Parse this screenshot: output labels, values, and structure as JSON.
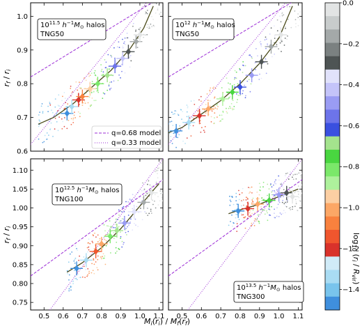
{
  "chart_data": {
    "type": "scatter",
    "xlabel": "M_i(r_i) / M_f(r_f)",
    "ylabel": "r_f / r_i",
    "xticks": [
      "0.5",
      "0.6",
      "0.7",
      "0.8",
      "0.9",
      "1.0",
      "1.1"
    ],
    "xlim": [
      0.43,
      1.12
    ],
    "colorbar": {
      "label": "log10 (r_i / R_vir)",
      "range": [
        -1.5,
        0.0
      ],
      "ticks": [
        "0.0",
        "−0.2",
        "−0.4",
        "−0.6",
        "−0.8",
        "−1.0",
        "−1.2",
        "−1.4"
      ],
      "colors": [
        "#3f8fdd",
        "#79c4ec",
        "#a9dcf3",
        "#d0ebf8",
        "#d9322b",
        "#f0562e",
        "#f9813e",
        "#fca766",
        "#fccfa3",
        "#aef19c",
        "#7be86a",
        "#49d640",
        "#a4e38d",
        "#3a50e0",
        "#6d74ea",
        "#9a9cf3",
        "#c4c4f9",
        "#e1e2fb",
        "#4e5454",
        "#7b8181",
        "#a4a9a9",
        "#c8cccc",
        "#e2e4e4"
      ]
    },
    "legend": [
      {
        "label": "q=0.68 model",
        "style": "dashed",
        "color": "#9b2bd6"
      },
      {
        "label": "q=0.33 model",
        "style": "dotted",
        "color": "#9b2bd6"
      }
    ],
    "panels": [
      {
        "label_mass": "10^{11.5} h^{-1}M_⊙ halos",
        "label_sim": "TNG50",
        "ylim": [
          0.6,
          1.04
        ],
        "yticks": [
          "0.6",
          "0.7",
          "0.8",
          "0.9",
          "1.0"
        ],
        "ytick_values": [
          0.6,
          0.7,
          0.8,
          0.9,
          1.0
        ],
        "binned_points": [
          {
            "x": 0.62,
            "y": 0.712
          },
          {
            "x": 0.645,
            "y": 0.732
          },
          {
            "x": 0.68,
            "y": 0.752
          },
          {
            "x": 0.7,
            "y": 0.762
          },
          {
            "x": 0.74,
            "y": 0.785
          },
          {
            "x": 0.78,
            "y": 0.8
          },
          {
            "x": 0.83,
            "y": 0.825
          },
          {
            "x": 0.87,
            "y": 0.852
          },
          {
            "x": 0.91,
            "y": 0.875
          },
          {
            "x": 0.94,
            "y": 0.895
          },
          {
            "x": 0.98,
            "y": 0.925
          },
          {
            "x": 1.0,
            "y": 0.945
          }
        ],
        "curve": [
          [
            0.47,
            0.68
          ],
          [
            0.55,
            0.7
          ],
          [
            0.65,
            0.74
          ],
          [
            0.75,
            0.79
          ],
          [
            0.85,
            0.84
          ],
          [
            0.95,
            0.905
          ],
          [
            1.02,
            0.965
          ],
          [
            1.07,
            1.03
          ]
        ],
        "model_q068": [
          [
            0.43,
            0.82
          ],
          [
            1.12,
            1.06
          ]
        ],
        "model_q033": [
          [
            0.43,
            0.62
          ],
          [
            1.12,
            1.1
          ]
        ]
      },
      {
        "label_mass": "10^{12} h^{-1}M_⊙ halos",
        "label_sim": "TNG50",
        "ylim": [
          0.6,
          1.04
        ],
        "binned_points": [
          {
            "x": 0.47,
            "y": 0.66
          },
          {
            "x": 0.535,
            "y": 0.685
          },
          {
            "x": 0.59,
            "y": 0.705
          },
          {
            "x": 0.635,
            "y": 0.725
          },
          {
            "x": 0.71,
            "y": 0.755
          },
          {
            "x": 0.76,
            "y": 0.775
          },
          {
            "x": 0.8,
            "y": 0.79
          },
          {
            "x": 0.86,
            "y": 0.825
          },
          {
            "x": 0.91,
            "y": 0.865
          },
          {
            "x": 0.96,
            "y": 0.91
          },
          {
            "x": 1.01,
            "y": 0.945
          }
        ],
        "curve": [
          [
            0.43,
            0.655
          ],
          [
            0.5,
            0.67
          ],
          [
            0.6,
            0.71
          ],
          [
            0.7,
            0.75
          ],
          [
            0.8,
            0.8
          ],
          [
            0.9,
            0.86
          ],
          [
            1.0,
            0.935
          ],
          [
            1.07,
            1.03
          ]
        ],
        "model_q068": [
          [
            0.43,
            0.82
          ],
          [
            1.12,
            1.06
          ]
        ],
        "model_q033": [
          [
            0.43,
            0.62
          ],
          [
            1.12,
            1.1
          ]
        ]
      },
      {
        "label_mass": "10^{12.5} h^{-1}M_⊙ halos",
        "label_sim": "TNG100",
        "ylim": [
          0.73,
          1.13
        ],
        "yticks": [
          "0.75",
          "0.80",
          "0.85",
          "0.90",
          "0.95",
          "1.00",
          "1.05",
          "1.10"
        ],
        "ytick_values": [
          0.75,
          0.8,
          0.85,
          0.9,
          0.95,
          1.0,
          1.05,
          1.1
        ],
        "binned_points": [
          {
            "x": 0.67,
            "y": 0.84
          },
          {
            "x": 0.72,
            "y": 0.862
          },
          {
            "x": 0.77,
            "y": 0.885
          },
          {
            "x": 0.8,
            "y": 0.905
          },
          {
            "x": 0.845,
            "y": 0.925
          },
          {
            "x": 0.88,
            "y": 0.94
          },
          {
            "x": 0.92,
            "y": 0.96
          },
          {
            "x": 0.97,
            "y": 0.99
          },
          {
            "x": 1.02,
            "y": 1.015
          },
          {
            "x": 1.06,
            "y": 1.04
          }
        ],
        "curve": [
          [
            0.62,
            0.83
          ],
          [
            0.7,
            0.855
          ],
          [
            0.8,
            0.895
          ],
          [
            0.9,
            0.945
          ],
          [
            1.0,
            1.005
          ],
          [
            1.1,
            1.065
          ]
        ],
        "model_q068": [
          [
            0.43,
            0.82
          ],
          [
            1.12,
            1.075
          ]
        ],
        "model_q033": [
          [
            0.53,
            0.73
          ],
          [
            1.12,
            1.13
          ]
        ]
      },
      {
        "label_mass": "10^{13.5} h^{-1}M_⊙ halos",
        "label_sim": "TNG300",
        "ylim": [
          0.73,
          1.13
        ],
        "binned_points": [
          {
            "x": 0.79,
            "y": 0.992
          },
          {
            "x": 0.84,
            "y": 0.998
          },
          {
            "x": 0.89,
            "y": 1.01
          },
          {
            "x": 0.95,
            "y": 1.02
          },
          {
            "x": 1.0,
            "y": 1.035
          },
          {
            "x": 1.04,
            "y": 1.04
          },
          {
            "x": 1.07,
            "y": 1.03
          }
        ],
        "curve": [
          [
            0.74,
            0.985
          ],
          [
            0.8,
            0.995
          ],
          [
            0.9,
            1.01
          ],
          [
            1.0,
            1.03
          ],
          [
            1.1,
            1.05
          ]
        ],
        "model_q068": [
          [
            0.43,
            0.82
          ],
          [
            1.12,
            1.075
          ]
        ],
        "model_q033": [
          [
            0.53,
            0.73
          ],
          [
            1.12,
            1.13
          ]
        ]
      }
    ]
  }
}
